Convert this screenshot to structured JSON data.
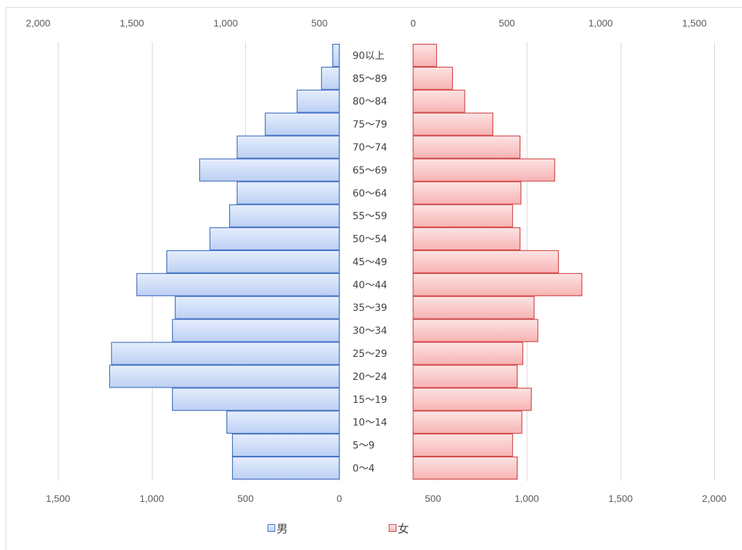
{
  "chart_data": {
    "type": "bar",
    "orientation": "horizontal",
    "categories": [
      "90以上",
      "85～89",
      "80～84",
      "75～79",
      "70～74",
      "65～69",
      "60～64",
      "55～59",
      "50～54",
      "45～49",
      "40～44",
      "35～39",
      "30～34",
      "25～29",
      "20～24",
      "15～19",
      "10～14",
      "5～9",
      "0～4"
    ],
    "series": [
      {
        "name": "男",
        "values": [
          35,
          95,
          225,
          395,
          545,
          745,
          545,
          585,
          690,
          920,
          1080,
          875,
          890,
          1215,
          1225,
          890,
          600,
          570,
          570
        ]
      },
      {
        "name": "女",
        "values": [
          125,
          210,
          275,
          425,
          570,
          755,
          575,
          530,
          570,
          775,
          900,
          645,
          665,
          585,
          555,
          630,
          580,
          530,
          555
        ]
      }
    ],
    "axes": {
      "top": {
        "range": [
          -2000,
          1500
        ],
        "ticks": [
          {
            "value": -2000,
            "label": "2,000"
          },
          {
            "value": -1500,
            "label": "1,500"
          },
          {
            "value": -1000,
            "label": "1,000"
          },
          {
            "value": -500,
            "label": "500"
          },
          {
            "value": 0,
            "label": "0"
          },
          {
            "value": 500,
            "label": "500"
          },
          {
            "value": 1000,
            "label": "1,000"
          },
          {
            "value": 1500,
            "label": "1,500"
          }
        ]
      },
      "bottom": {
        "range": [
          -1500,
          2000
        ],
        "ticks": [
          {
            "value": -1500,
            "label": "1,500"
          },
          {
            "value": -1000,
            "label": "1,000"
          },
          {
            "value": -500,
            "label": "500"
          },
          {
            "value": 0,
            "label": "0"
          },
          {
            "value": 500,
            "label": "500"
          },
          {
            "value": 1000,
            "label": "1,000"
          },
          {
            "value": 1500,
            "label": "1,500"
          },
          {
            "value": 2000,
            "label": "2,000"
          }
        ]
      }
    },
    "grid": {
      "vertical": true,
      "horizontal": false
    },
    "legend": {
      "placement": "bottom"
    }
  },
  "colors": {
    "male": "#4472c4",
    "male_fill_top": "#e6eefd",
    "male_fill_bottom": "#bcd0f3",
    "female": "#d04a4a",
    "female_fill_top": "#fde4e4",
    "female_fill_bottom": "#f7b3b3",
    "gridline": "#d9d9d9"
  }
}
